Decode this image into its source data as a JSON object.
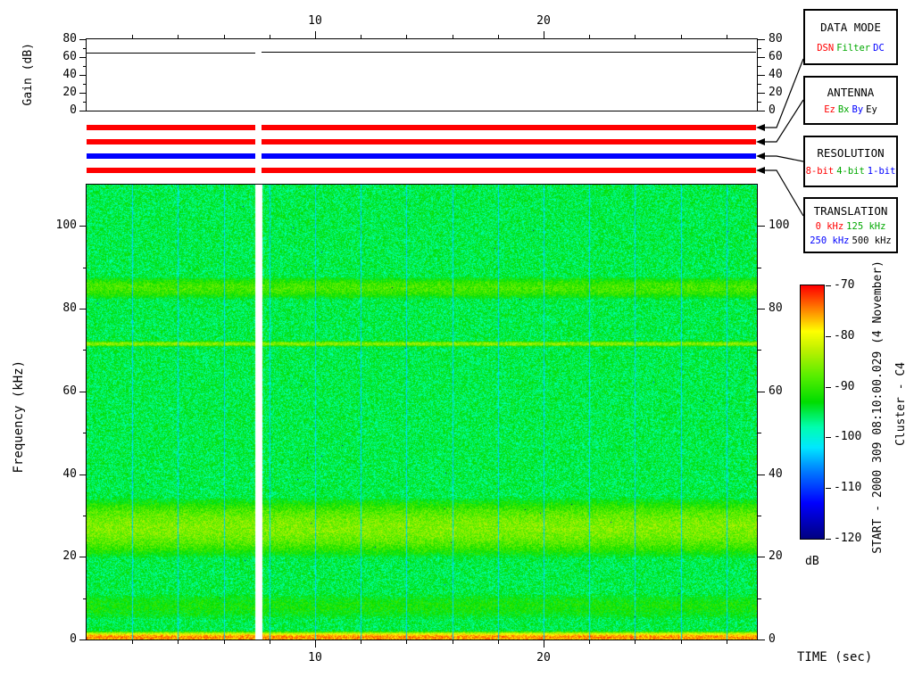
{
  "annotations": {
    "start_text": "START - 2000 309 08:10:00.029 (4 November)",
    "spacecraft_text": "Cluster - C4"
  },
  "gain_panel": {
    "ylabel": "Gain (dB)",
    "yticks": [
      0,
      20,
      40,
      60,
      80
    ],
    "ytick_minor": [
      10,
      30,
      50,
      70
    ]
  },
  "time_axis": {
    "label": "TIME (sec)",
    "major_ticks": [
      10,
      20
    ],
    "minor_step": 2,
    "range_sec": [
      0,
      29.3
    ]
  },
  "freq_axis": {
    "label": "Frequency (kHz)",
    "major_ticks": [
      0,
      20,
      40,
      60,
      80,
      100
    ],
    "minor_step": 10,
    "range_khz": [
      0,
      110
    ]
  },
  "status_bars": [
    {
      "name": "data-mode-bar",
      "color": "#ff0000"
    },
    {
      "name": "antenna-bar",
      "color": "#ff0000"
    },
    {
      "name": "resolution-bar",
      "color": "#0000ff"
    },
    {
      "name": "translation-bar",
      "color": "#ff0000"
    }
  ],
  "legend_boxes": [
    {
      "title": "DATA MODE",
      "rows": [
        [
          {
            "label": "DSN",
            "color": "#ff0000"
          },
          {
            "label": "Filter",
            "color": "#00a800"
          },
          {
            "label": "DC",
            "color": "#0000ff"
          }
        ]
      ]
    },
    {
      "title": "ANTENNA",
      "rows": [
        [
          {
            "label": "Ez",
            "color": "#ff0000"
          },
          {
            "label": "Bx",
            "color": "#00a800"
          },
          {
            "label": "By",
            "color": "#0000ff"
          },
          {
            "label": "Ey",
            "color": "#000000"
          }
        ]
      ]
    },
    {
      "title": "RESOLUTION",
      "rows": [
        [
          {
            "label": "8-bit",
            "color": "#ff0000"
          },
          {
            "label": "4-bit",
            "color": "#00a800"
          },
          {
            "label": "1-bit",
            "color": "#0000ff"
          }
        ]
      ]
    },
    {
      "title": "TRANSLATION",
      "rows": [
        [
          {
            "label": "0 kHz",
            "color": "#ff0000"
          },
          {
            "label": "125 kHz",
            "color": "#00a800"
          }
        ],
        [
          {
            "label": "250 kHz",
            "color": "#0000ff"
          },
          {
            "label": "500 kHz",
            "color": "#000000"
          }
        ]
      ]
    }
  ],
  "colorbar": {
    "unit": "dB",
    "ticks": [
      -70,
      -80,
      -90,
      -100,
      -110,
      -120
    ],
    "range_db": [
      -120,
      -70
    ],
    "stops": [
      [
        -120,
        "#000082"
      ],
      [
        -113,
        "#0000ff"
      ],
      [
        -107,
        "#0075ff"
      ],
      [
        -102,
        "#00e8ff"
      ],
      [
        -98,
        "#00ffb0"
      ],
      [
        -93,
        "#00dd00"
      ],
      [
        -88,
        "#55ee00"
      ],
      [
        -83,
        "#b8f000"
      ],
      [
        -79,
        "#ffff00"
      ],
      [
        -75,
        "#ff8c00"
      ],
      [
        -70,
        "#ff0000"
      ]
    ]
  },
  "chart_data": [
    {
      "type": "line",
      "title": "Receiver gain vs time",
      "xlabel": "TIME (sec)",
      "ylabel": "Gain (dB)",
      "xlim": [
        0,
        29.3
      ],
      "ylim": [
        0,
        80
      ],
      "series": [
        {
          "name": "gain",
          "segments": [
            {
              "t": [
                0,
                7.4
              ],
              "db": 65
            },
            {
              "t": [
                7.67,
                29.3
              ],
              "db": 66
            }
          ]
        }
      ]
    },
    {
      "type": "heatmap",
      "title": "Cluster WBD wideband spectrogram",
      "xlabel": "TIME (sec)",
      "ylabel": "Frequency (kHz)",
      "x_range_sec": [
        0,
        29.3
      ],
      "y_range_khz": [
        0,
        110
      ],
      "color_scale_db": [
        -120,
        -70
      ],
      "background_db": -95,
      "bands": [
        {
          "center_khz": 85,
          "halfwidth_khz": 2.5,
          "peak_db": -89
        },
        {
          "center_khz": 71.5,
          "halfwidth_khz": 0.5,
          "peak_db": -85
        },
        {
          "center_khz": 27,
          "halfwidth_khz": 5.5,
          "peak_db": -86
        },
        {
          "center_khz": 8,
          "halfwidth_khz": 4.0,
          "peak_db": -92
        },
        {
          "center_khz": 0.5,
          "halfwidth_khz": 0.8,
          "peak_db": -75
        }
      ],
      "marker_lines": {
        "every_sec": 2,
        "db": -103
      },
      "data_gap_sec": [
        7.4,
        7.67
      ]
    }
  ]
}
